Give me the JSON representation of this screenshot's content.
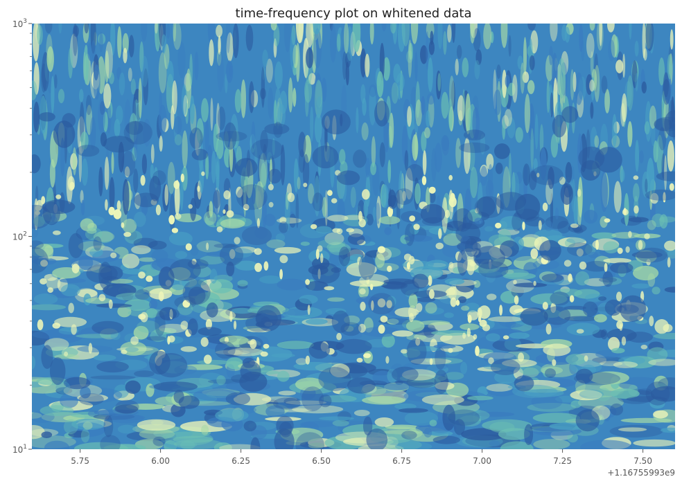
{
  "chart_data": {
    "type": "heatmap",
    "title": "time-frequency plot on whitened data",
    "xlabel": "",
    "ylabel": "",
    "x_scale": "linear",
    "y_scale": "log",
    "xlim": [
      5.6,
      7.6
    ],
    "ylim": [
      10,
      1000
    ],
    "x_offset_label": "+1.16755993e9",
    "x_ticks": [
      {
        "value": 5.75,
        "label": "5.75"
      },
      {
        "value": 6.0,
        "label": "6.00"
      },
      {
        "value": 6.25,
        "label": "6.25"
      },
      {
        "value": 6.5,
        "label": "6.50"
      },
      {
        "value": 6.75,
        "label": "6.75"
      },
      {
        "value": 7.0,
        "label": "7.00"
      },
      {
        "value": 7.25,
        "label": "7.25"
      },
      {
        "value": 7.5,
        "label": "7.50"
      }
    ],
    "y_ticks": [
      {
        "value": 10,
        "base": "10",
        "exp": "1"
      },
      {
        "value": 100,
        "base": "10",
        "exp": "2"
      },
      {
        "value": 1000,
        "base": "10",
        "exp": "3"
      }
    ],
    "grid": false,
    "colormap": [
      "#2b5a9e",
      "#3a7cbf",
      "#4aa2c4",
      "#6cc0b3",
      "#a8dba6",
      "#eef6b8"
    ],
    "background_color": "#3d86c0"
  }
}
